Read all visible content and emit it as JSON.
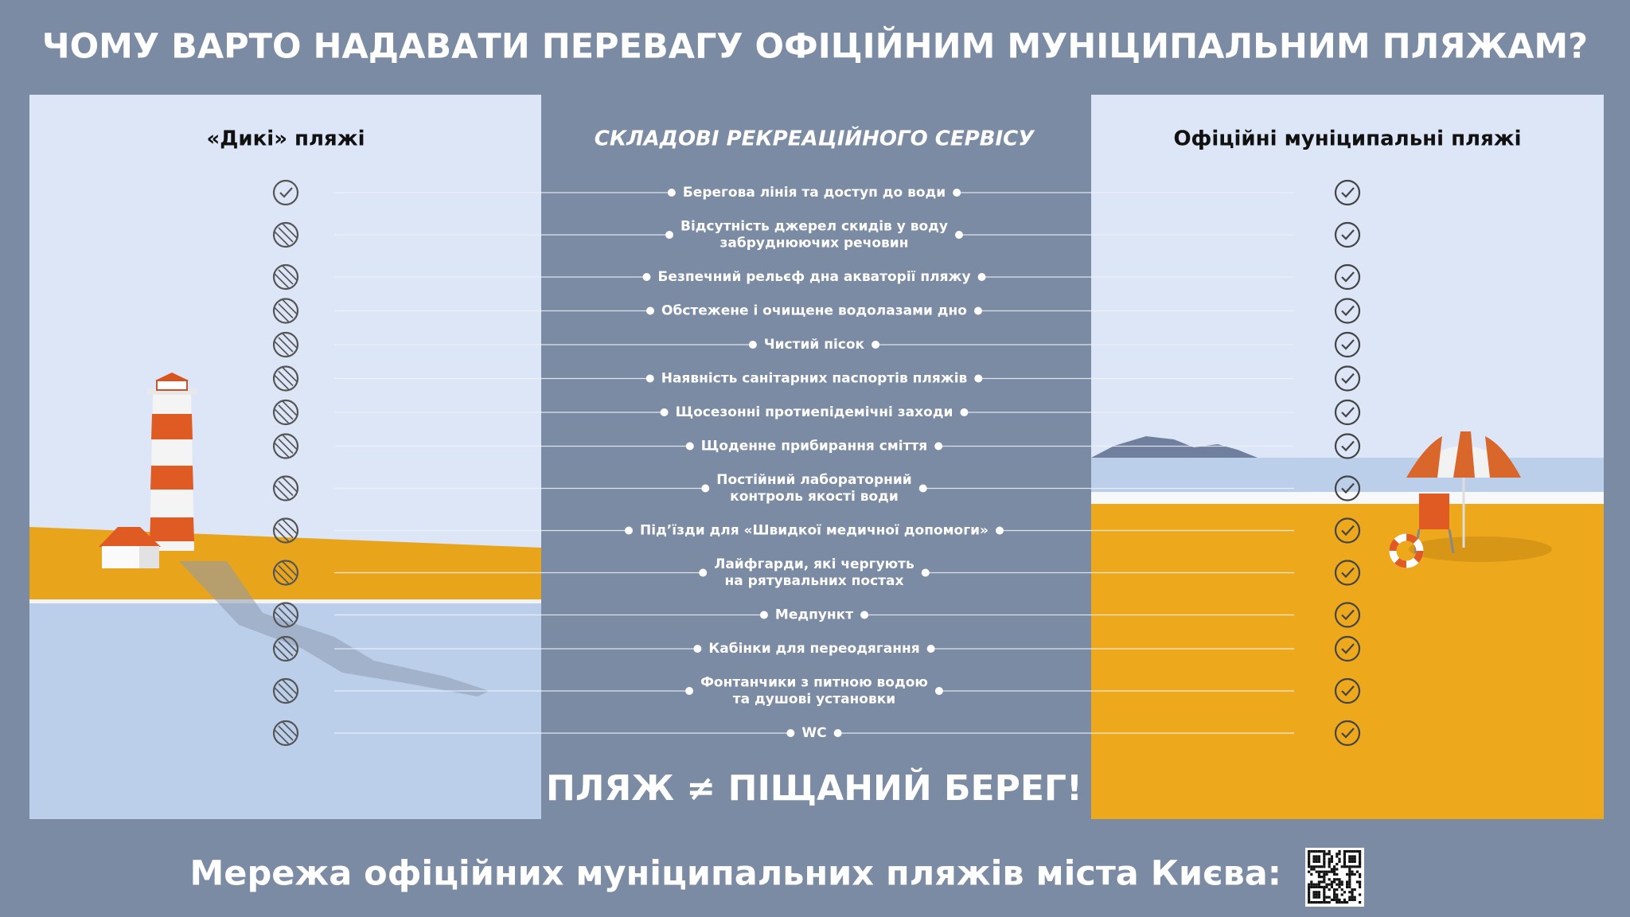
{
  "title": "ЧОМУ ВАРТО НАДАВАТИ ПЕРЕВАГУ ОФІЦІЙНИМ МУНІЦИПАЛЬНИМ ПЛЯЖАМ?",
  "wild_beaches": {
    "title": "«Дикі» пляжі"
  },
  "service": {
    "title": "СКЛАДОВІ РЕКРЕАЦІЙНОГО СЕРВІСУ",
    "items": [
      {
        "lines": [
          "Берегова лінія та доступ до води"
        ]
      },
      {
        "lines": [
          "Відсутність джерел скидів у воду",
          "забруднюючих речовин"
        ]
      },
      {
        "lines": [
          "Безпечний рельєф дна акваторії пляжу"
        ]
      },
      {
        "lines": [
          "Обстежене і очищене водолазами дно"
        ]
      },
      {
        "lines": [
          "Чистий пісок"
        ]
      },
      {
        "lines": [
          "Наявність санітарних паспортів пляжів"
        ]
      },
      {
        "lines": [
          "Щосезонні протиепідемічні заходи"
        ]
      },
      {
        "lines": [
          "Щоденне прибирання сміття"
        ]
      },
      {
        "lines": [
          "Постійний лабораторний",
          "контроль якості води"
        ]
      },
      {
        "lines": [
          "Під’їзди для «Швидкої медичної допомоги»"
        ]
      },
      {
        "lines": [
          "Лайфгарди, які чергують",
          "на рятувальних постах"
        ]
      },
      {
        "lines": [
          "Медпункт"
        ]
      },
      {
        "lines": [
          "Кабінки для переодягання"
        ]
      },
      {
        "lines": [
          "Фонтанчики з питною водою",
          "та душові установки"
        ]
      },
      {
        "lines": [
          "WC"
        ]
      }
    ]
  },
  "official_beaches": {
    "title": "Офіційні муніципальні пляжі"
  },
  "slogan": "ПЛЯЖ ≠ ПІЩАНИЙ БЕРЕГ!",
  "footer": "Мережа офіційних муніципальних пляжів міста Києва:"
}
